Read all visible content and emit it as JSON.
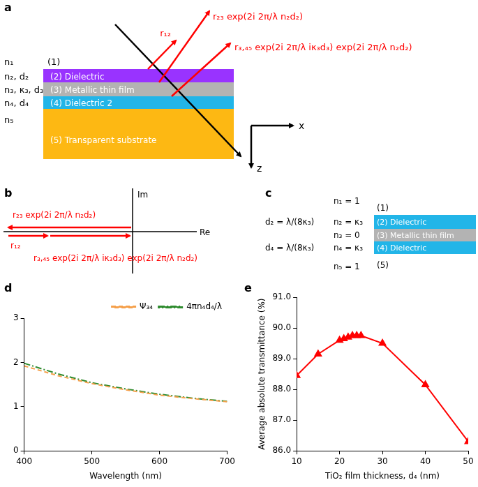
{
  "panel_labels": [
    "a",
    "b",
    "c",
    "d",
    "e"
  ],
  "diagram": {
    "a": {
      "media": [
        {
          "symbol": "n₁",
          "text": "(1)"
        },
        {
          "symbol": "n₂, d₂",
          "text": "(2) Dielectric"
        },
        {
          "symbol": "n₃, κ₃, d₃",
          "text": "(3) Metallic thin film"
        },
        {
          "symbol": "n₄, d₄",
          "text": "(4) Dielectric 2"
        },
        {
          "symbol": "n₅",
          "text": "(5) Transparent substrate"
        }
      ],
      "reflections": [
        "r₁₂",
        "r₂₃ exp(2i 2π/λ n₂d₂)",
        "r₃,₄₅ exp(2i 2π/λ iκ₃d₃) exp(2i 2π/λ n₂d₂)"
      ],
      "axes": [
        "x",
        "z"
      ]
    },
    "b": {
      "axes": [
        "Im",
        "Re"
      ],
      "phasors": [
        "r₁₂",
        "r₂₃ exp(2i 2π/λ n₂d₂)",
        "r₃,₄₅ exp(2i 2π/λ iκ₃d₃) exp(2i 2π/λ n₂d₂)"
      ]
    },
    "c": {
      "media": [
        {
          "index": "n₁ = 1",
          "text": "(1)"
        },
        {
          "thickness": "d₂ = λ/(8κ₃)",
          "index": "n₂ = κ₃",
          "text": "(2) Dielectric"
        },
        {
          "index": "n₃ = 0",
          "text": "(3) Metallic thin film"
        },
        {
          "thickness": "d₄ = λ/(8κ₃)",
          "index": "n₄ = κ₃",
          "text": "(4) Dielectric"
        },
        {
          "index": "n₅ = 1",
          "text": "(5)"
        }
      ]
    }
  },
  "chart_data": [
    {
      "type": "line",
      "x": [
        400,
        450,
        500,
        550,
        600,
        650,
        700
      ],
      "series": [
        {
          "name": "Ψ₃₄",
          "color": "#f5a04b",
          "values": [
            1.92,
            1.7,
            1.52,
            1.38,
            1.26,
            1.18,
            1.11
          ],
          "marker": "none",
          "line_style": "dashed"
        },
        {
          "name": "4πn₄d₄/λ",
          "color": "#2e8b2e",
          "values": [
            1.98,
            1.74,
            1.54,
            1.4,
            1.28,
            1.19,
            1.12
          ],
          "marker": "none",
          "line_style": "dashdot"
        }
      ],
      "x_label": "Wavelength (nm)",
      "xlim": [
        400,
        700
      ],
      "xticks": [
        400,
        500,
        600,
        700
      ],
      "ylim": [
        0,
        3
      ],
      "yticks": [
        0,
        1,
        2,
        3
      ],
      "grid": false,
      "legend": "upper right"
    },
    {
      "type": "line",
      "x": [
        10,
        15,
        20,
        21,
        22,
        23,
        24,
        25,
        30,
        40,
        50
      ],
      "values": [
        88.45,
        89.15,
        89.6,
        89.65,
        89.7,
        89.75,
        89.75,
        89.75,
        89.5,
        88.15,
        86.3
      ],
      "color": "#ff0000",
      "marker": "triangle",
      "line_style": "solid",
      "x_label": "TiO₂ film thickness, d₄ (nm)",
      "y_label": "Average absolute transmittance (%)",
      "xlim": [
        10,
        50
      ],
      "xticks": [
        10,
        20,
        30,
        40,
        50
      ],
      "ylim": [
        86,
        91
      ],
      "yticks": [
        {
          "value": 86,
          "label": "86.0"
        },
        {
          "value": 87,
          "label": "87.0"
        },
        {
          "value": 88,
          "label": "88.0"
        },
        {
          "value": 89,
          "label": "89.0"
        },
        {
          "value": 90,
          "label": "90.0"
        },
        {
          "value": 91,
          "label": "91.0"
        }
      ],
      "grid": false
    }
  ]
}
